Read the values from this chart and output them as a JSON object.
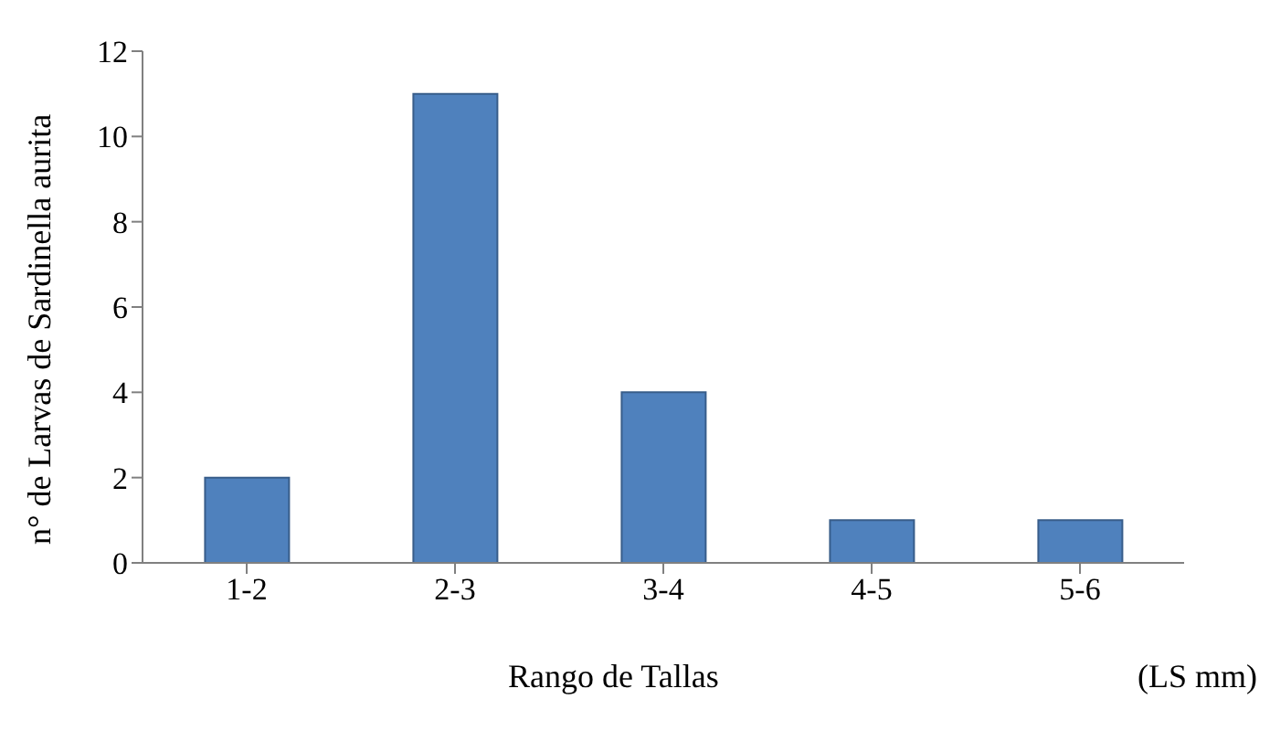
{
  "chart_data": {
    "type": "bar",
    "xlabel": "Rango de Tallas",
    "ylabel": "n° de Larvas de Sardinella aurita",
    "annotations": [
      "(LS mm)"
    ],
    "categories": [
      "1-2",
      "2-3",
      "3-4",
      "4-5",
      "5-6"
    ],
    "values": [
      2,
      11,
      4,
      1,
      1
    ],
    "color": "#4f81bd",
    "ylim": [
      0,
      12
    ],
    "yticks": [
      0,
      2,
      4,
      6,
      8,
      10,
      12
    ],
    "grid": false,
    "legend": false
  }
}
